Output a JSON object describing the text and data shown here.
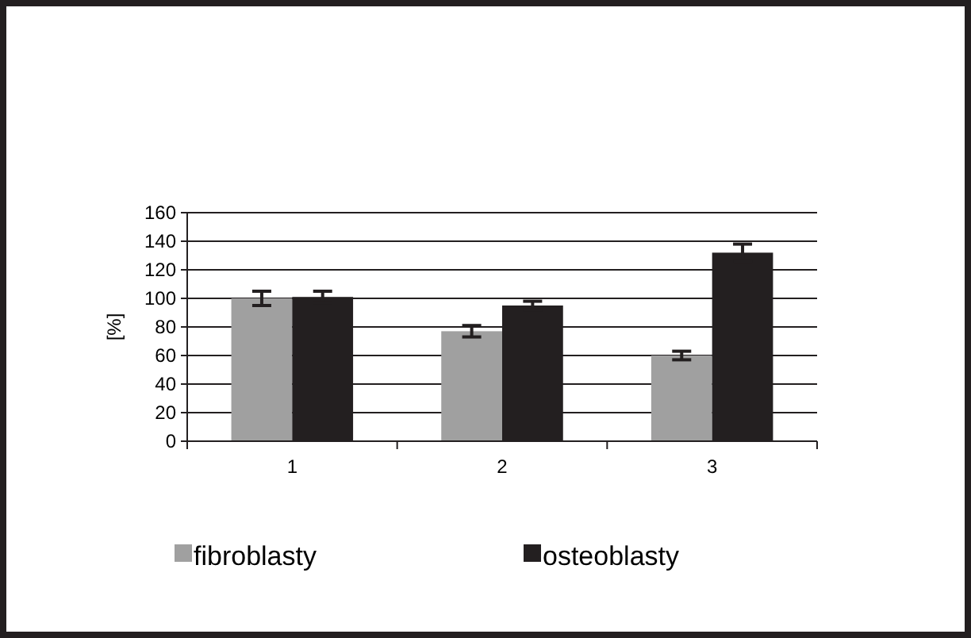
{
  "chart_data": {
    "type": "bar",
    "categories": [
      "1",
      "2",
      "3"
    ],
    "ylabel": "[%]",
    "ylim": [
      0,
      160
    ],
    "yticks": [
      0,
      20,
      40,
      60,
      80,
      100,
      120,
      140,
      160
    ],
    "grid": "y",
    "legend": "bottom",
    "series": [
      {
        "name": "fibroblasty",
        "color": "#a0a0a0",
        "values": [
          100,
          77,
          60
        ],
        "errors": [
          5,
          4,
          3
        ]
      },
      {
        "name": "osteoblasty",
        "color": "#231f20",
        "values": [
          101,
          95,
          132
        ],
        "errors": [
          4,
          3,
          6
        ]
      }
    ]
  }
}
